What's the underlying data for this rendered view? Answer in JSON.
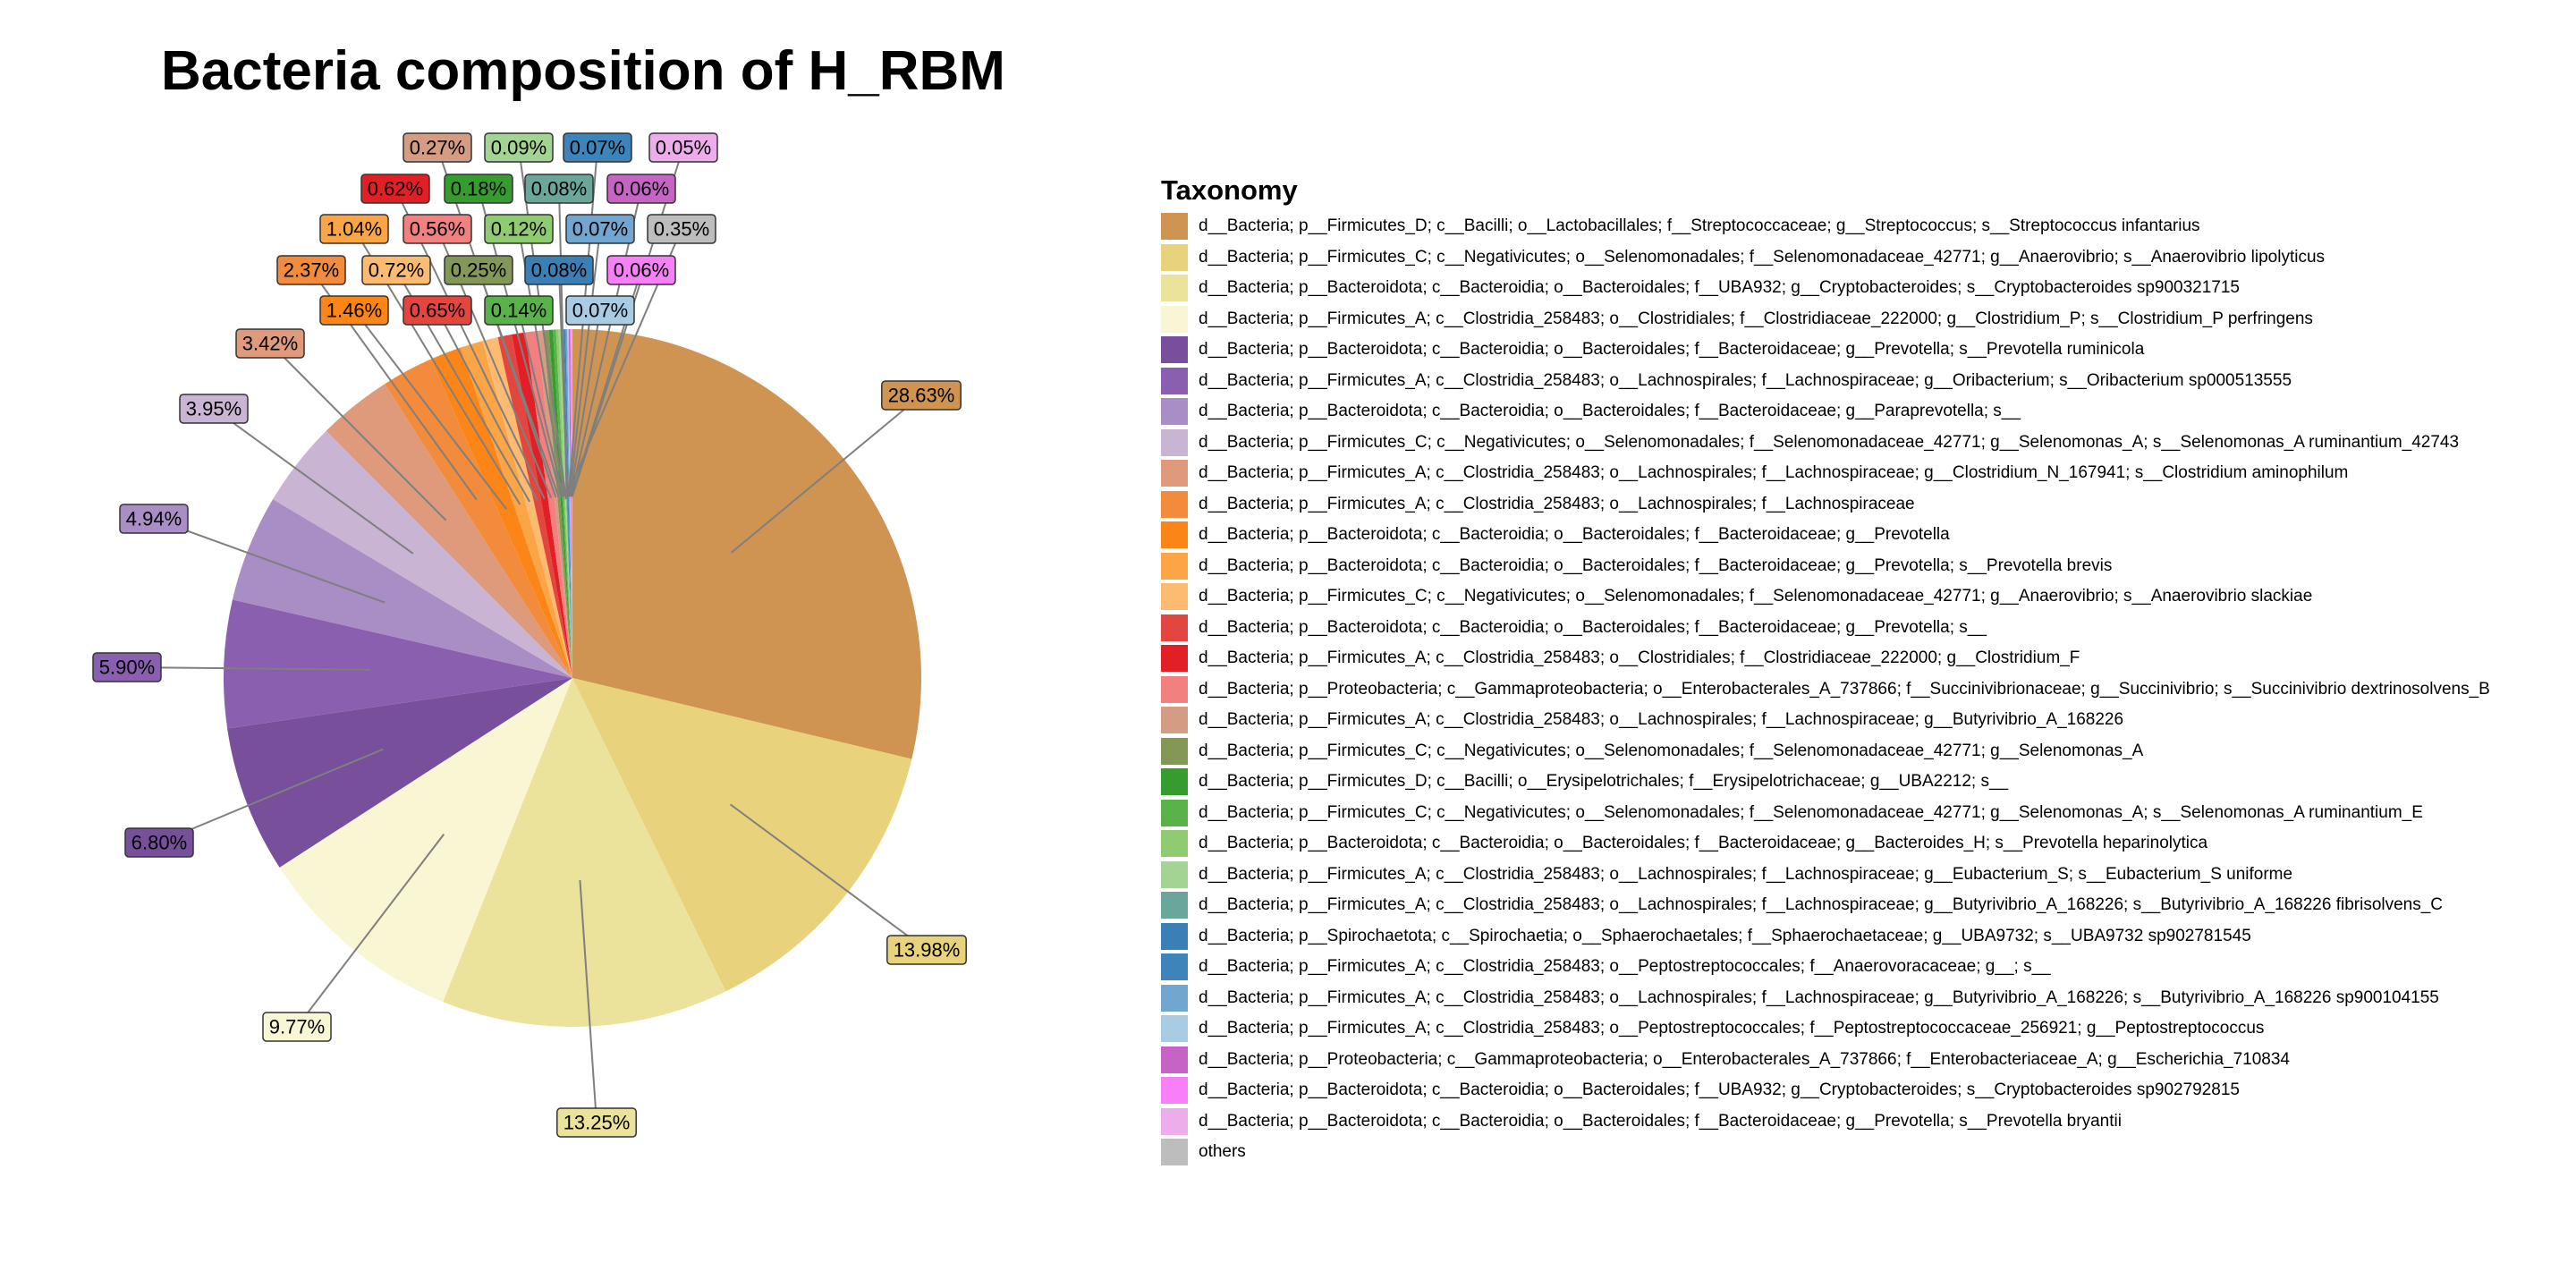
{
  "chart_data": {
    "type": "pie",
    "title": "Bacteria composition of H_RBM",
    "legend_title": "Taxonomy",
    "legend_position": "right",
    "slices": [
      {
        "label": "d__Bacteria; p__Firmicutes_D; c__Bacilli; o__Lactobacillales; f__Streptococcaceae; g__Streptococcus; s__Streptococcus infantarius",
        "value": 28.63,
        "value_label": "28.63%",
        "color": "#CF9452"
      },
      {
        "label": "d__Bacteria; p__Firmicutes_C; c__Negativicutes; o__Selenomonadales; f__Selenomonadaceae_42771; g__Anaerovibrio; s__Anaerovibrio lipolyticus",
        "value": 13.98,
        "value_label": "13.98%",
        "color": "#E8D27B"
      },
      {
        "label": "d__Bacteria; p__Bacteroidota; c__Bacteroidia; o__Bacteroidales; f__UBA932; g__Cryptobacteroides; s__Cryptobacteroides sp900321715",
        "value": 13.25,
        "value_label": "13.25%",
        "color": "#EBE39C"
      },
      {
        "label": "d__Bacteria; p__Firmicutes_A; c__Clostridia_258483; o__Clostridiales; f__Clostridiaceae_222000; g__Clostridium_P; s__Clostridium_P perfringens",
        "value": 9.77,
        "value_label": "9.77%",
        "color": "#F9F7D3"
      },
      {
        "label": "d__Bacteria; p__Bacteroidota; c__Bacteroidia; o__Bacteroidales; f__Bacteroidaceae; g__Prevotella; s__Prevotella ruminicola",
        "value": 6.8,
        "value_label": "6.80%",
        "color": "#774F9A"
      },
      {
        "label": "d__Bacteria; p__Firmicutes_A; c__Clostridia_258483; o__Lachnospirales; f__Lachnospiraceae; g__Oribacterium; s__Oribacterium sp000513555",
        "value": 5.9,
        "value_label": "5.90%",
        "color": "#8B5FAF"
      },
      {
        "label": "d__Bacteria; p__Bacteroidota; c__Bacteroidia; o__Bacteroidales; f__Bacteroidaceae; g__Paraprevotella; s__",
        "value": 4.94,
        "value_label": "4.94%",
        "color": "#A98DC5"
      },
      {
        "label": "d__Bacteria; p__Firmicutes_C; c__Negativicutes; o__Selenomonadales; f__Selenomonadaceae_42771; g__Selenomonas_A; s__Selenomonas_A ruminantium_42743",
        "value": 3.95,
        "value_label": "3.95%",
        "color": "#C9B4D3"
      },
      {
        "label": "d__Bacteria; p__Firmicutes_A; c__Clostridia_258483; o__Lachnospirales; f__Lachnospiraceae; g__Clostridium_N_167941; s__Clostridium aminophilum",
        "value": 3.42,
        "value_label": "3.42%",
        "color": "#DE9A7A"
      },
      {
        "label": "d__Bacteria; p__Firmicutes_A; c__Clostridia_258483; o__Lachnospirales; f__Lachnospiraceae",
        "value": 2.37,
        "value_label": "2.37%",
        "color": "#F28B3B"
      },
      {
        "label": "d__Bacteria; p__Bacteroidota; c__Bacteroidia; o__Bacteroidales; f__Bacteroidaceae; g__Prevotella",
        "value": 1.46,
        "value_label": "1.46%",
        "color": "#FB8617"
      },
      {
        "label": "d__Bacteria; p__Bacteroidota; c__Bacteroidia; o__Bacteroidales; f__Bacteroidaceae; g__Prevotella; s__Prevotella brevis",
        "value": 1.04,
        "value_label": "1.04%",
        "color": "#FCA547"
      },
      {
        "label": "d__Bacteria; p__Firmicutes_C; c__Negativicutes; o__Selenomonadales; f__Selenomonadaceae_42771; g__Anaerovibrio; s__Anaerovibrio slackiae",
        "value": 0.72,
        "value_label": "0.72%",
        "color": "#FDBB71"
      },
      {
        "label": "d__Bacteria; p__Bacteroidota; c__Bacteroidia; o__Bacteroidales; f__Bacteroidaceae; g__Prevotella; s__",
        "value": 0.65,
        "value_label": "0.65%",
        "color": "#E3463E"
      },
      {
        "label": "d__Bacteria; p__Firmicutes_A; c__Clostridia_258483; o__Clostridiales; f__Clostridiaceae_222000; g__Clostridium_F",
        "value": 0.62,
        "value_label": "0.62%",
        "color": "#E31F26"
      },
      {
        "label": "d__Bacteria; p__Proteobacteria; c__Gammaproteobacteria; o__Enterobacterales_A_737866; f__Succinivibrionaceae; g__Succinivibrio; s__Succinivibrio dextrinosolvens_B",
        "value": 0.56,
        "value_label": "0.56%",
        "color": "#F2807F"
      },
      {
        "label": "d__Bacteria; p__Firmicutes_A; c__Clostridia_258483; o__Lachnospirales; f__Lachnospiraceae; g__Butyrivibrio_A_168226",
        "value": 0.27,
        "value_label": "0.27%",
        "color": "#D59C84"
      },
      {
        "label": "d__Bacteria; p__Firmicutes_C; c__Negativicutes; o__Selenomonadales; f__Selenomonadaceae_42771; g__Selenomonas_A",
        "value": 0.25,
        "value_label": "0.25%",
        "color": "#839856"
      },
      {
        "label": "d__Bacteria; p__Firmicutes_D; c__Bacilli; o__Erysipelotrichales; f__Erysipelotrichaceae; g__UBA2212; s__",
        "value": 0.18,
        "value_label": "0.18%",
        "color": "#369C2F"
      },
      {
        "label": "d__Bacteria; p__Firmicutes_C; c__Negativicutes; o__Selenomonadales; f__Selenomonadaceae_42771; g__Selenomonas_A; s__Selenomonas_A ruminantium_E",
        "value": 0.14,
        "value_label": "0.14%",
        "color": "#59B24A"
      },
      {
        "label": "d__Bacteria; p__Bacteroidota; c__Bacteroidia; o__Bacteroidales; f__Bacteroidaceae; g__Bacteroides_H; s__Prevotella heparinolytica",
        "value": 0.12,
        "value_label": "0.12%",
        "color": "#8FCB70"
      },
      {
        "label": "d__Bacteria; p__Firmicutes_A; c__Clostridia_258483; o__Lachnospirales; f__Lachnospiraceae; g__Eubacterium_S; s__Eubacterium_S uniforme",
        "value": 0.09,
        "value_label": "0.09%",
        "color": "#A4D493"
      },
      {
        "label": "d__Bacteria; p__Firmicutes_A; c__Clostridia_258483; o__Lachnospirales; f__Lachnospiraceae; g__Butyrivibrio_A_168226; s__Butyrivibrio_A_168226 fibrisolvens_C",
        "value": 0.08,
        "value_label": "0.08%",
        "color": "#6BA69A"
      },
      {
        "label": "d__Bacteria; p__Spirochaetota; c__Spirochaetia; o__Sphaerochaetales; f__Sphaerochaetaceae; g__UBA9732; s__UBA9732 sp902781545",
        "value": 0.08,
        "value_label": "0.08%",
        "color": "#3A80B6"
      },
      {
        "label": "d__Bacteria; p__Firmicutes_A; c__Clostridia_258483; o__Peptostreptococcales; f__Anaerovoracaceae; g__; s__",
        "value": 0.07,
        "value_label": "0.07%",
        "color": "#3C84BA"
      },
      {
        "label": "d__Bacteria; p__Firmicutes_A; c__Clostridia_258483; o__Lachnospirales; f__Lachnospiraceae; g__Butyrivibrio_A_168226; s__Butyrivibrio_A_168226 sp900104155",
        "value": 0.07,
        "value_label": "0.07%",
        "color": "#71A6D0"
      },
      {
        "label": "d__Bacteria; p__Firmicutes_A; c__Clostridia_258483; o__Peptostreptococcales; f__Peptostreptococcaceae_256921; g__Peptostreptococcus",
        "value": 0.07,
        "value_label": "0.07%",
        "color": "#A7CCE3"
      },
      {
        "label": "d__Bacteria; p__Proteobacteria; c__Gammaproteobacteria; o__Enterobacterales_A_737866; f__Enterobacteriaceae_A; g__Escherichia_710834",
        "value": 0.06,
        "value_label": "0.06%",
        "color": "#C664C6"
      },
      {
        "label": "d__Bacteria; p__Bacteroidota; c__Bacteroidia; o__Bacteroidales; f__UBA932; g__Cryptobacteroides; s__Cryptobacteroides sp902792815",
        "value": 0.06,
        "value_label": "0.06%",
        "color": "#F77FF7"
      },
      {
        "label": "d__Bacteria; p__Bacteroidota; c__Bacteroidia; o__Bacteroidales; f__Bacteroidaceae; g__Prevotella; s__Prevotella bryantii",
        "value": 0.05,
        "value_label": "0.05%",
        "color": "#ECADEA"
      },
      {
        "label": "others",
        "value": 0.35,
        "value_label": "0.35%",
        "color": "#BDBDBD"
      }
    ]
  }
}
